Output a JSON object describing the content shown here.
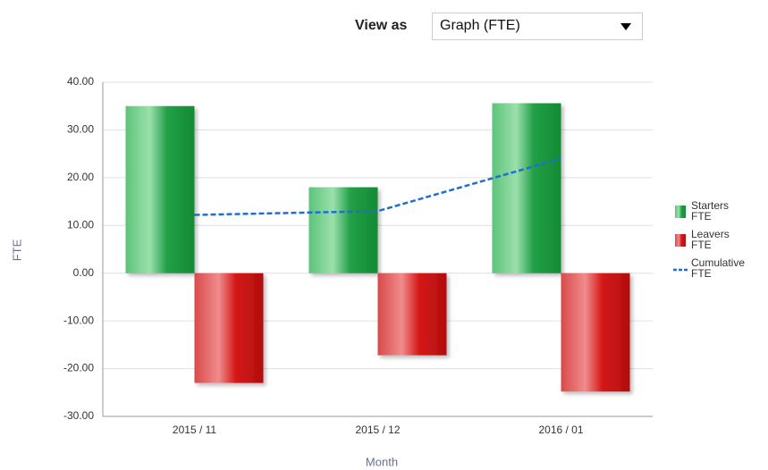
{
  "view_control": {
    "label": "View as",
    "selected": "Graph (FTE)"
  },
  "chart_data": {
    "type": "bar",
    "x_label": "Month",
    "y_label": "FTE",
    "categories": [
      "2015 / 11",
      "2015 / 12",
      "2016 / 01"
    ],
    "series": [
      {
        "name": "Starters FTE",
        "color": "#1f9a3e",
        "type": "bar",
        "values": [
          35,
          18,
          35.6
        ]
      },
      {
        "name": "Leavers FTE",
        "color": "#cc1515",
        "type": "bar",
        "values": [
          -23,
          -17.2,
          -24.8
        ]
      },
      {
        "name": "Cumulative FTE",
        "color": "#1f6fd0",
        "type": "line",
        "values": [
          12.2,
          13,
          24
        ]
      }
    ],
    "ylim": [
      -30,
      40
    ],
    "yticks": [
      {
        "value": -30,
        "label": "-30.00"
      },
      {
        "value": -20,
        "label": "-20.00"
      },
      {
        "value": -10,
        "label": "-10.00"
      },
      {
        "value": 0,
        "label": "0.00"
      },
      {
        "value": 10,
        "label": "10.00"
      },
      {
        "value": 20,
        "label": "20.00"
      },
      {
        "value": 30,
        "label": "30.00"
      },
      {
        "value": 40,
        "label": "40.00"
      }
    ],
    "grid": true,
    "legend": "right"
  }
}
